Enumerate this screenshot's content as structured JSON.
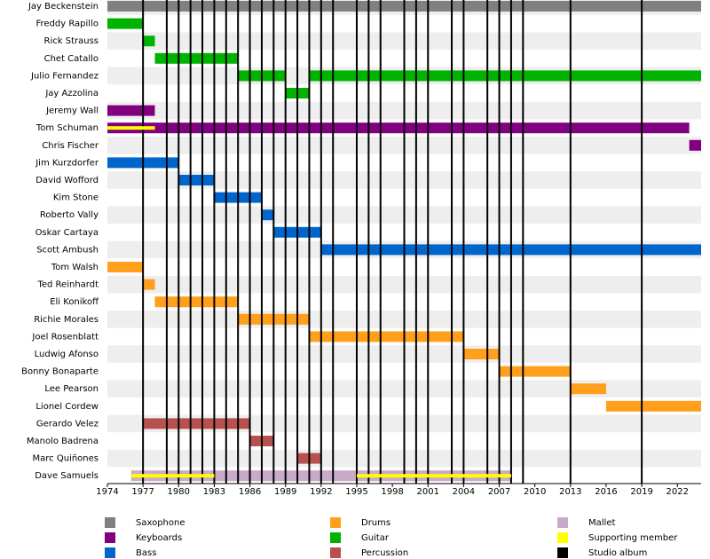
{
  "chart_data": {
    "type": "timeline",
    "xlim": [
      1974,
      2024
    ],
    "xticks": [
      1974,
      1977,
      1980,
      1983,
      1986,
      1989,
      1992,
      1995,
      1998,
      2001,
      2004,
      2007,
      2010,
      2013,
      2016,
      2019,
      2022
    ],
    "series": [
      {
        "name": "Saxophone",
        "color": "#808080"
      },
      {
        "name": "Keyboards",
        "color": "#800080"
      },
      {
        "name": "Bass",
        "color": "#0066cc"
      },
      {
        "name": "Drums",
        "color": "#ff9f1c"
      },
      {
        "name": "Guitar",
        "color": "#00b300"
      },
      {
        "name": "Percussion",
        "color": "#b85050"
      },
      {
        "name": "Mallet",
        "color": "#c9aac9"
      },
      {
        "name": "Supporting member",
        "color": "#ffff00"
      }
    ],
    "albums": {
      "name": "Studio album",
      "color": "#000000",
      "x": [
        1977,
        1979,
        1980,
        1981,
        1982,
        1983,
        1984,
        1985,
        1986,
        1987,
        1988,
        1989,
        1990,
        1991,
        1992,
        1993,
        1995,
        1996,
        1997,
        1999,
        2000,
        2001,
        2003,
        2004,
        2006,
        2007,
        2008,
        2009,
        2013,
        2019
      ]
    },
    "rows": [
      {
        "name": "Jay Beckenstein",
        "spans": [
          {
            "role": "Saxophone",
            "start": 1974,
            "end": 2024
          }
        ]
      },
      {
        "name": "Freddy Rapillo",
        "spans": [
          {
            "role": "Guitar",
            "start": 1974,
            "end": 1977
          }
        ]
      },
      {
        "name": "Rick Strauss",
        "spans": [
          {
            "role": "Guitar",
            "start": 1977,
            "end": 1978
          }
        ]
      },
      {
        "name": "Chet Catallo",
        "spans": [
          {
            "role": "Guitar",
            "start": 1978,
            "end": 1985
          }
        ]
      },
      {
        "name": "Julio Fernandez",
        "spans": [
          {
            "role": "Guitar",
            "start": 1985,
            "end": 1989
          },
          {
            "role": "Guitar",
            "start": 1991,
            "end": 2024
          }
        ]
      },
      {
        "name": "Jay Azzolina",
        "spans": [
          {
            "role": "Guitar",
            "start": 1989,
            "end": 1991
          }
        ]
      },
      {
        "name": "Jeremy Wall",
        "spans": [
          {
            "role": "Keyboards",
            "start": 1974,
            "end": 1978
          }
        ]
      },
      {
        "name": "Tom Schuman",
        "spans": [
          {
            "role": "Keyboards",
            "start": 1974,
            "end": 2023
          },
          {
            "role": "Supporting member",
            "start": 1974,
            "end": 1978
          }
        ]
      },
      {
        "name": "Chris Fischer",
        "spans": [
          {
            "role": "Keyboards",
            "start": 2023,
            "end": 2024
          }
        ]
      },
      {
        "name": "Jim Kurzdorfer",
        "spans": [
          {
            "role": "Bass",
            "start": 1974,
            "end": 1980
          }
        ]
      },
      {
        "name": "David Wofford",
        "spans": [
          {
            "role": "Bass",
            "start": 1980,
            "end": 1983
          }
        ]
      },
      {
        "name": "Kim Stone",
        "spans": [
          {
            "role": "Bass",
            "start": 1983,
            "end": 1987
          }
        ]
      },
      {
        "name": "Roberto Vally",
        "spans": [
          {
            "role": "Bass",
            "start": 1987,
            "end": 1988
          }
        ]
      },
      {
        "name": "Oskar Cartaya",
        "spans": [
          {
            "role": "Bass",
            "start": 1988,
            "end": 1992
          }
        ]
      },
      {
        "name": "Scott Ambush",
        "spans": [
          {
            "role": "Bass",
            "start": 1992,
            "end": 2024
          }
        ]
      },
      {
        "name": "Tom Walsh",
        "spans": [
          {
            "role": "Drums",
            "start": 1974,
            "end": 1977
          }
        ]
      },
      {
        "name": "Ted Reinhardt",
        "spans": [
          {
            "role": "Drums",
            "start": 1977,
            "end": 1978
          }
        ]
      },
      {
        "name": "Eli Konikoff",
        "spans": [
          {
            "role": "Drums",
            "start": 1978,
            "end": 1985
          }
        ]
      },
      {
        "name": "Richie Morales",
        "spans": [
          {
            "role": "Drums",
            "start": 1985,
            "end": 1991
          }
        ]
      },
      {
        "name": "Joel Rosenblatt",
        "spans": [
          {
            "role": "Drums",
            "start": 1991,
            "end": 2004
          }
        ]
      },
      {
        "name": "Ludwig Afonso",
        "spans": [
          {
            "role": "Drums",
            "start": 2004,
            "end": 2007
          }
        ]
      },
      {
        "name": "Bonny Bonaparte",
        "spans": [
          {
            "role": "Drums",
            "start": 2007,
            "end": 2013
          }
        ]
      },
      {
        "name": "Lee Pearson",
        "spans": [
          {
            "role": "Drums",
            "start": 2013,
            "end": 2016
          }
        ]
      },
      {
        "name": "Lionel Cordew",
        "spans": [
          {
            "role": "Drums",
            "start": 2016,
            "end": 2024
          }
        ]
      },
      {
        "name": "Gerardo Velez",
        "spans": [
          {
            "role": "Percussion",
            "start": 1977,
            "end": 1986
          }
        ]
      },
      {
        "name": "Manolo Badrena",
        "spans": [
          {
            "role": "Percussion",
            "start": 1986,
            "end": 1988
          }
        ]
      },
      {
        "name": "Marc Quiñones",
        "spans": [
          {
            "role": "Percussion",
            "start": 1990,
            "end": 1992
          }
        ]
      },
      {
        "name": "Dave Samuels",
        "spans": [
          {
            "role": "Mallet",
            "start": 1976,
            "end": 2008
          },
          {
            "role": "Supporting member",
            "start": 1976,
            "end": 1983
          },
          {
            "role": "Supporting member",
            "start": 1995,
            "end": 2008
          }
        ]
      }
    ]
  }
}
